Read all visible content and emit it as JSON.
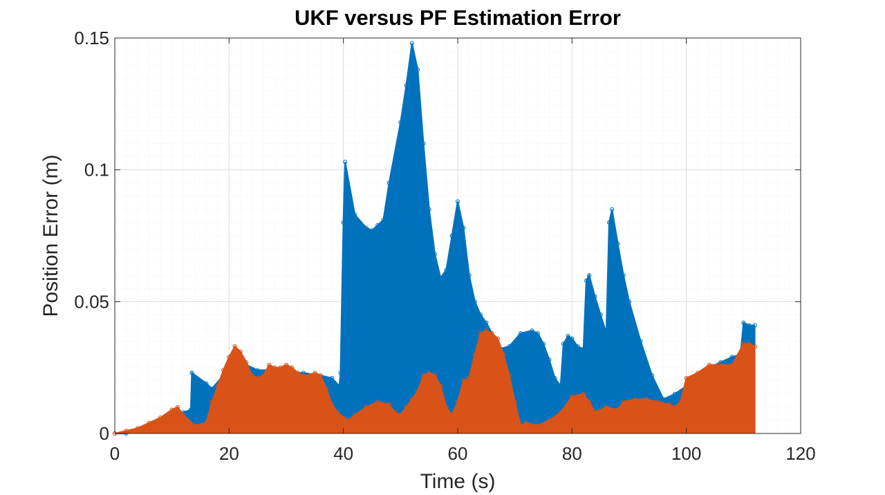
{
  "chart_data": {
    "type": "stem",
    "title": "UKF versus PF Estimation Error",
    "xlabel": "Time (s)",
    "ylabel": "Position Error (m)",
    "xlim": [
      0,
      120
    ],
    "ylim": [
      0,
      0.15
    ],
    "xticks": [
      0,
      20,
      40,
      60,
      80,
      100,
      120
    ],
    "xtick_labels": [
      "0",
      "20",
      "40",
      "60",
      "80",
      "100",
      "120"
    ],
    "yticks": [
      0,
      0.05,
      0.1,
      0.15
    ],
    "ytick_labels": [
      "0",
      "0.05",
      "0.1",
      "0.15"
    ],
    "grid": true,
    "minor_grid": true,
    "legend": "none",
    "series": [
      {
        "color": "#0072BD",
        "marker": "open-circle",
        "points": [
          [
            0,
            0
          ],
          [
            2,
            0
          ],
          [
            4,
            0.001
          ],
          [
            6,
            0.003
          ],
          [
            8,
            0.005
          ],
          [
            10,
            0.007
          ],
          [
            12,
            0.008
          ],
          [
            13.3,
            0.009
          ],
          [
            13.5,
            0.023
          ],
          [
            16,
            0.019
          ],
          [
            17,
            0.017
          ],
          [
            19,
            0.022
          ],
          [
            21,
            0.027
          ],
          [
            23,
            0.026
          ],
          [
            25,
            0.024
          ],
          [
            27,
            0.024
          ],
          [
            30,
            0.023
          ],
          [
            33,
            0.023
          ],
          [
            36,
            0.022
          ],
          [
            38,
            0.021
          ],
          [
            39.3,
            0.018
          ],
          [
            39.5,
            0.023
          ],
          [
            40,
            0.08
          ],
          [
            40.3,
            0.103
          ],
          [
            42,
            0.083
          ],
          [
            44,
            0.078
          ],
          [
            45,
            0.077
          ],
          [
            46,
            0.079
          ],
          [
            47,
            0.081
          ],
          [
            48,
            0.095
          ],
          [
            50,
            0.118
          ],
          [
            51,
            0.132
          ],
          [
            52,
            0.148
          ],
          [
            53,
            0.138
          ],
          [
            54,
            0.11
          ],
          [
            55,
            0.085
          ],
          [
            56,
            0.068
          ],
          [
            57,
            0.059
          ],
          [
            58,
            0.062
          ],
          [
            59,
            0.075
          ],
          [
            60,
            0.088
          ],
          [
            61,
            0.078
          ],
          [
            62,
            0.06
          ],
          [
            63,
            0.05
          ],
          [
            64,
            0.045
          ],
          [
            65,
            0.042
          ],
          [
            66,
            0.038
          ],
          [
            67,
            0.032
          ],
          [
            69,
            0.033
          ],
          [
            71,
            0.038
          ],
          [
            73,
            0.039
          ],
          [
            74,
            0.038
          ],
          [
            75,
            0.034
          ],
          [
            76,
            0.028
          ],
          [
            77,
            0.021
          ],
          [
            78,
            0.018
          ],
          [
            78.5,
            0.034
          ],
          [
            79.3,
            0.037
          ],
          [
            80,
            0.036
          ],
          [
            81,
            0.033
          ],
          [
            82,
            0.032
          ],
          [
            82.5,
            0.058
          ],
          [
            83,
            0.06
          ],
          [
            84,
            0.052
          ],
          [
            85,
            0.045
          ],
          [
            86,
            0.038
          ],
          [
            86.5,
            0.08
          ],
          [
            87,
            0.085
          ],
          [
            88,
            0.072
          ],
          [
            89,
            0.06
          ],
          [
            90,
            0.05
          ],
          [
            92,
            0.035
          ],
          [
            94,
            0.022
          ],
          [
            96,
            0.013
          ],
          [
            98,
            0.015
          ],
          [
            100,
            0.018
          ],
          [
            102,
            0.021
          ],
          [
            104,
            0.025
          ],
          [
            106,
            0.027
          ],
          [
            108,
            0.029
          ],
          [
            109.5,
            0.03
          ],
          [
            110,
            0.042
          ],
          [
            111,
            0.041
          ],
          [
            112,
            0.041
          ]
        ]
      },
      {
        "color": "#D95319",
        "marker": "open-circle",
        "points": [
          [
            0,
            0
          ],
          [
            2,
            0.001
          ],
          [
            4,
            0.002
          ],
          [
            6,
            0.004
          ],
          [
            8,
            0.006
          ],
          [
            10,
            0.009
          ],
          [
            11,
            0.01
          ],
          [
            12,
            0.007
          ],
          [
            14,
            0.003
          ],
          [
            16,
            0.004
          ],
          [
            17,
            0.012
          ],
          [
            18,
            0.018
          ],
          [
            19,
            0.024
          ],
          [
            20,
            0.029
          ],
          [
            21,
            0.033
          ],
          [
            22,
            0.031
          ],
          [
            23,
            0.027
          ],
          [
            24,
            0.022
          ],
          [
            25,
            0.021
          ],
          [
            26,
            0.022
          ],
          [
            27,
            0.026
          ],
          [
            28,
            0.025
          ],
          [
            29,
            0.025
          ],
          [
            30,
            0.026
          ],
          [
            31,
            0.025
          ],
          [
            32,
            0.023
          ],
          [
            33,
            0.022
          ],
          [
            34,
            0.022
          ],
          [
            35,
            0.023
          ],
          [
            36,
            0.022
          ],
          [
            37,
            0.017
          ],
          [
            38,
            0.011
          ],
          [
            39,
            0.008
          ],
          [
            40,
            0.006
          ],
          [
            41,
            0.005
          ],
          [
            42,
            0.007
          ],
          [
            44,
            0.01
          ],
          [
            46,
            0.012
          ],
          [
            48,
            0.011
          ],
          [
            49,
            0.008
          ],
          [
            50,
            0.007
          ],
          [
            51,
            0.01
          ],
          [
            52,
            0.013
          ],
          [
            53,
            0.016
          ],
          [
            54,
            0.022
          ],
          [
            55,
            0.023
          ],
          [
            56,
            0.022
          ],
          [
            57,
            0.018
          ],
          [
            58,
            0.01
          ],
          [
            59,
            0.007
          ],
          [
            60,
            0.012
          ],
          [
            61,
            0.02
          ],
          [
            62,
            0.021
          ],
          [
            63,
            0.03
          ],
          [
            64,
            0.038
          ],
          [
            65,
            0.039
          ],
          [
            66,
            0.038
          ],
          [
            67,
            0.036
          ],
          [
            68,
            0.03
          ],
          [
            69,
            0.022
          ],
          [
            70,
            0.012
          ],
          [
            71,
            0.003
          ],
          [
            72,
            0.004
          ],
          [
            74,
            0.003
          ],
          [
            76,
            0.005
          ],
          [
            78,
            0.008
          ],
          [
            80,
            0.014
          ],
          [
            82,
            0.015
          ],
          [
            83,
            0.012
          ],
          [
            84,
            0.008
          ],
          [
            86,
            0.01
          ],
          [
            88,
            0.009
          ],
          [
            89,
            0.012
          ],
          [
            91,
            0.013
          ],
          [
            93,
            0.013
          ],
          [
            95,
            0.012
          ],
          [
            97,
            0.011
          ],
          [
            98,
            0.01
          ],
          [
            99,
            0.012
          ],
          [
            100,
            0.021
          ],
          [
            102,
            0.023
          ],
          [
            104,
            0.026
          ],
          [
            106,
            0.026
          ],
          [
            108,
            0.026
          ],
          [
            110,
            0.034
          ],
          [
            111,
            0.034
          ],
          [
            112,
            0.033
          ]
        ]
      }
    ]
  }
}
